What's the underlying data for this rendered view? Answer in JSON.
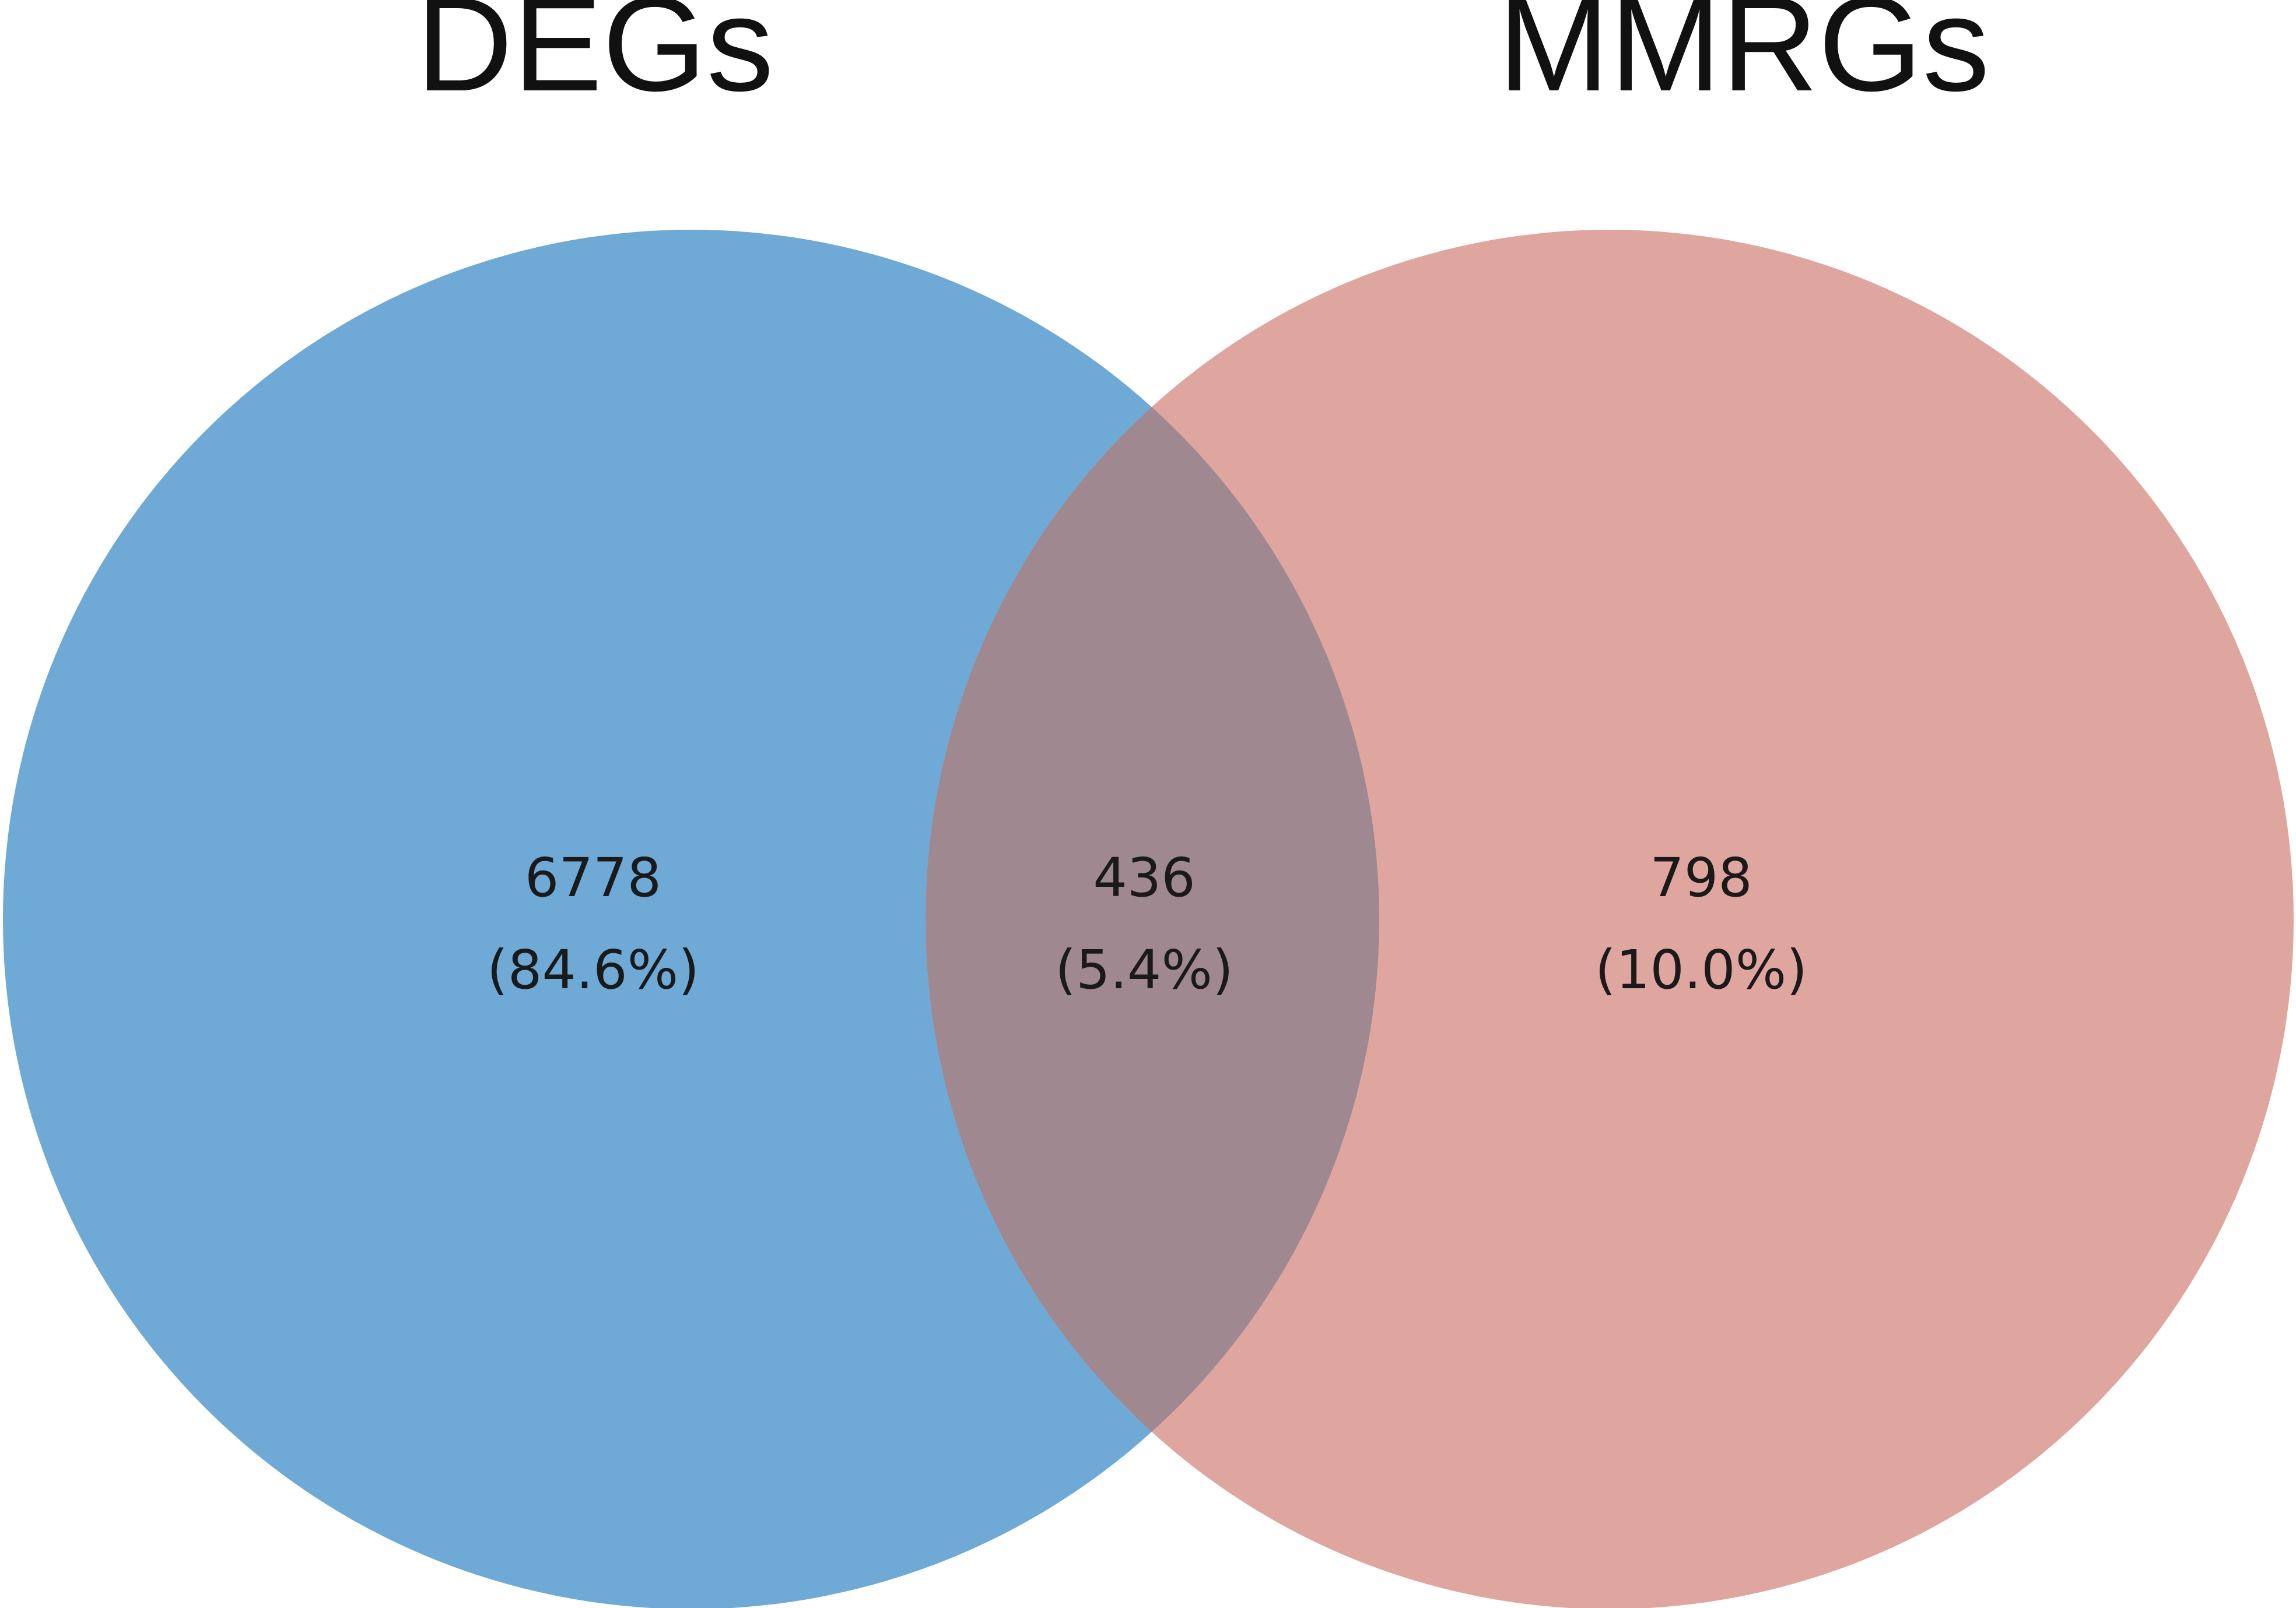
{
  "sets": [
    {
      "name": "DEGs",
      "color": "#6fa9d6"
    },
    {
      "name": "MMRGs",
      "color": "#dfa6a0"
    }
  ],
  "overlap_color": "#a08890",
  "regions": {
    "left_only": {
      "count": "6778",
      "percent": "(84.6%)"
    },
    "both": {
      "count": "436",
      "percent": "(5.4%)"
    },
    "right_only": {
      "count": "798",
      "percent": "(10.0%)"
    }
  }
}
